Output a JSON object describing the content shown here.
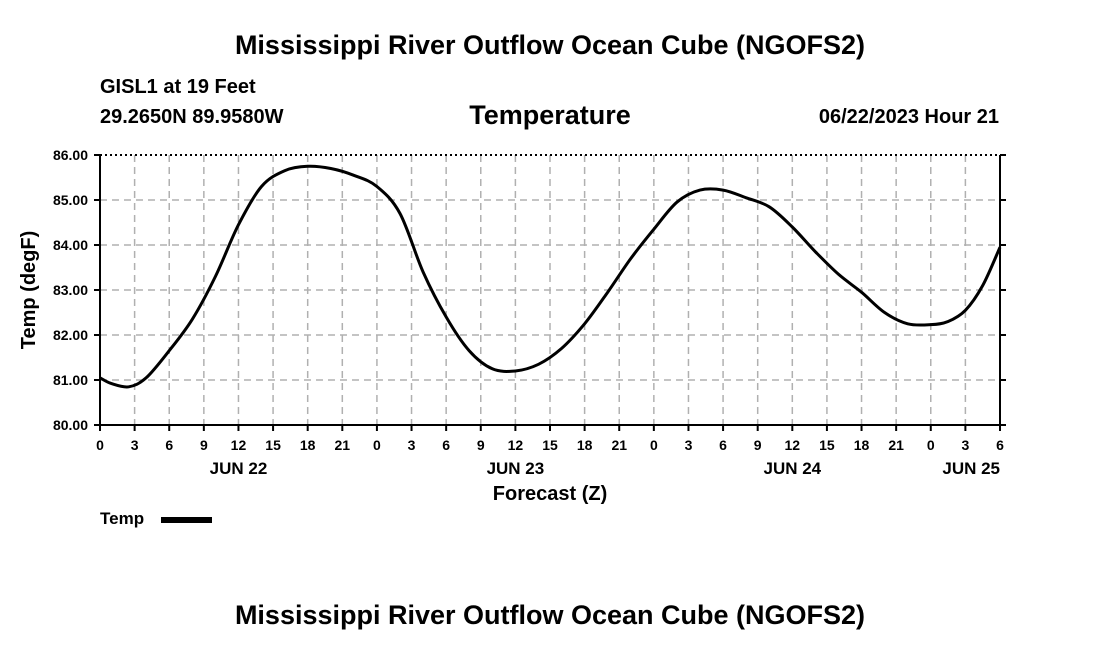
{
  "header": {
    "title": "Mississippi River Outflow Ocean Cube (NGOFS2)",
    "station": "GISL1 at 19 Feet",
    "coordinates": "29.2650N  89.9580W",
    "variable": "Temperature",
    "timestamp": "06/22/2023 Hour 21"
  },
  "footer": {
    "title": "Mississippi River Outflow Ocean Cube (NGOFS2)"
  },
  "legend": {
    "label": "Temp",
    "color": "#000000"
  },
  "chart_data": {
    "type": "line",
    "title": "Temperature",
    "xlabel": "Forecast (Z)",
    "ylabel": "Temp (degF)",
    "xlim": [
      0,
      78
    ],
    "ylim": [
      80,
      86
    ],
    "grid": true,
    "legend_position": "bottom-left",
    "x_tick_labels": [
      "0",
      "3",
      "6",
      "9",
      "12",
      "15",
      "18",
      "21",
      "0",
      "3",
      "6",
      "9",
      "12",
      "15",
      "18",
      "21",
      "0",
      "3",
      "6",
      "9",
      "12",
      "15",
      "18",
      "21",
      "0",
      "3",
      "6"
    ],
    "y_ticks": [
      80,
      81,
      82,
      83,
      84,
      85,
      86
    ],
    "y_tick_labels": [
      "80.00",
      "81.00",
      "82.00",
      "83.00",
      "84.00",
      "85.00",
      "86.00"
    ],
    "date_labels": [
      {
        "label": "JUN 22",
        "x": 12
      },
      {
        "label": "JUN 23",
        "x": 36
      },
      {
        "label": "JUN 24",
        "x": 60
      },
      {
        "label": "JUN 25",
        "x": 78
      }
    ],
    "series": [
      {
        "name": "Temp",
        "x": [
          0,
          1,
          2.5,
          4,
          6,
          8,
          10,
          12,
          14,
          16,
          18,
          20,
          22,
          24,
          26,
          28,
          30,
          32,
          34,
          36,
          38,
          40,
          42,
          44,
          46,
          48,
          50,
          52,
          54,
          56,
          58,
          60,
          62,
          64,
          66,
          68,
          70,
          72,
          73.5,
          75,
          76.5,
          78
        ],
        "values": [
          81.05,
          80.92,
          80.85,
          81.05,
          81.65,
          82.35,
          83.3,
          84.45,
          85.3,
          85.65,
          85.75,
          85.7,
          85.55,
          85.3,
          84.7,
          83.4,
          82.4,
          81.65,
          81.25,
          81.2,
          81.35,
          81.7,
          82.25,
          82.95,
          83.7,
          84.35,
          84.95,
          85.22,
          85.22,
          85.05,
          84.85,
          84.4,
          83.85,
          83.35,
          82.95,
          82.5,
          82.25,
          82.23,
          82.3,
          82.55,
          83.1,
          83.95
        ]
      }
    ]
  }
}
